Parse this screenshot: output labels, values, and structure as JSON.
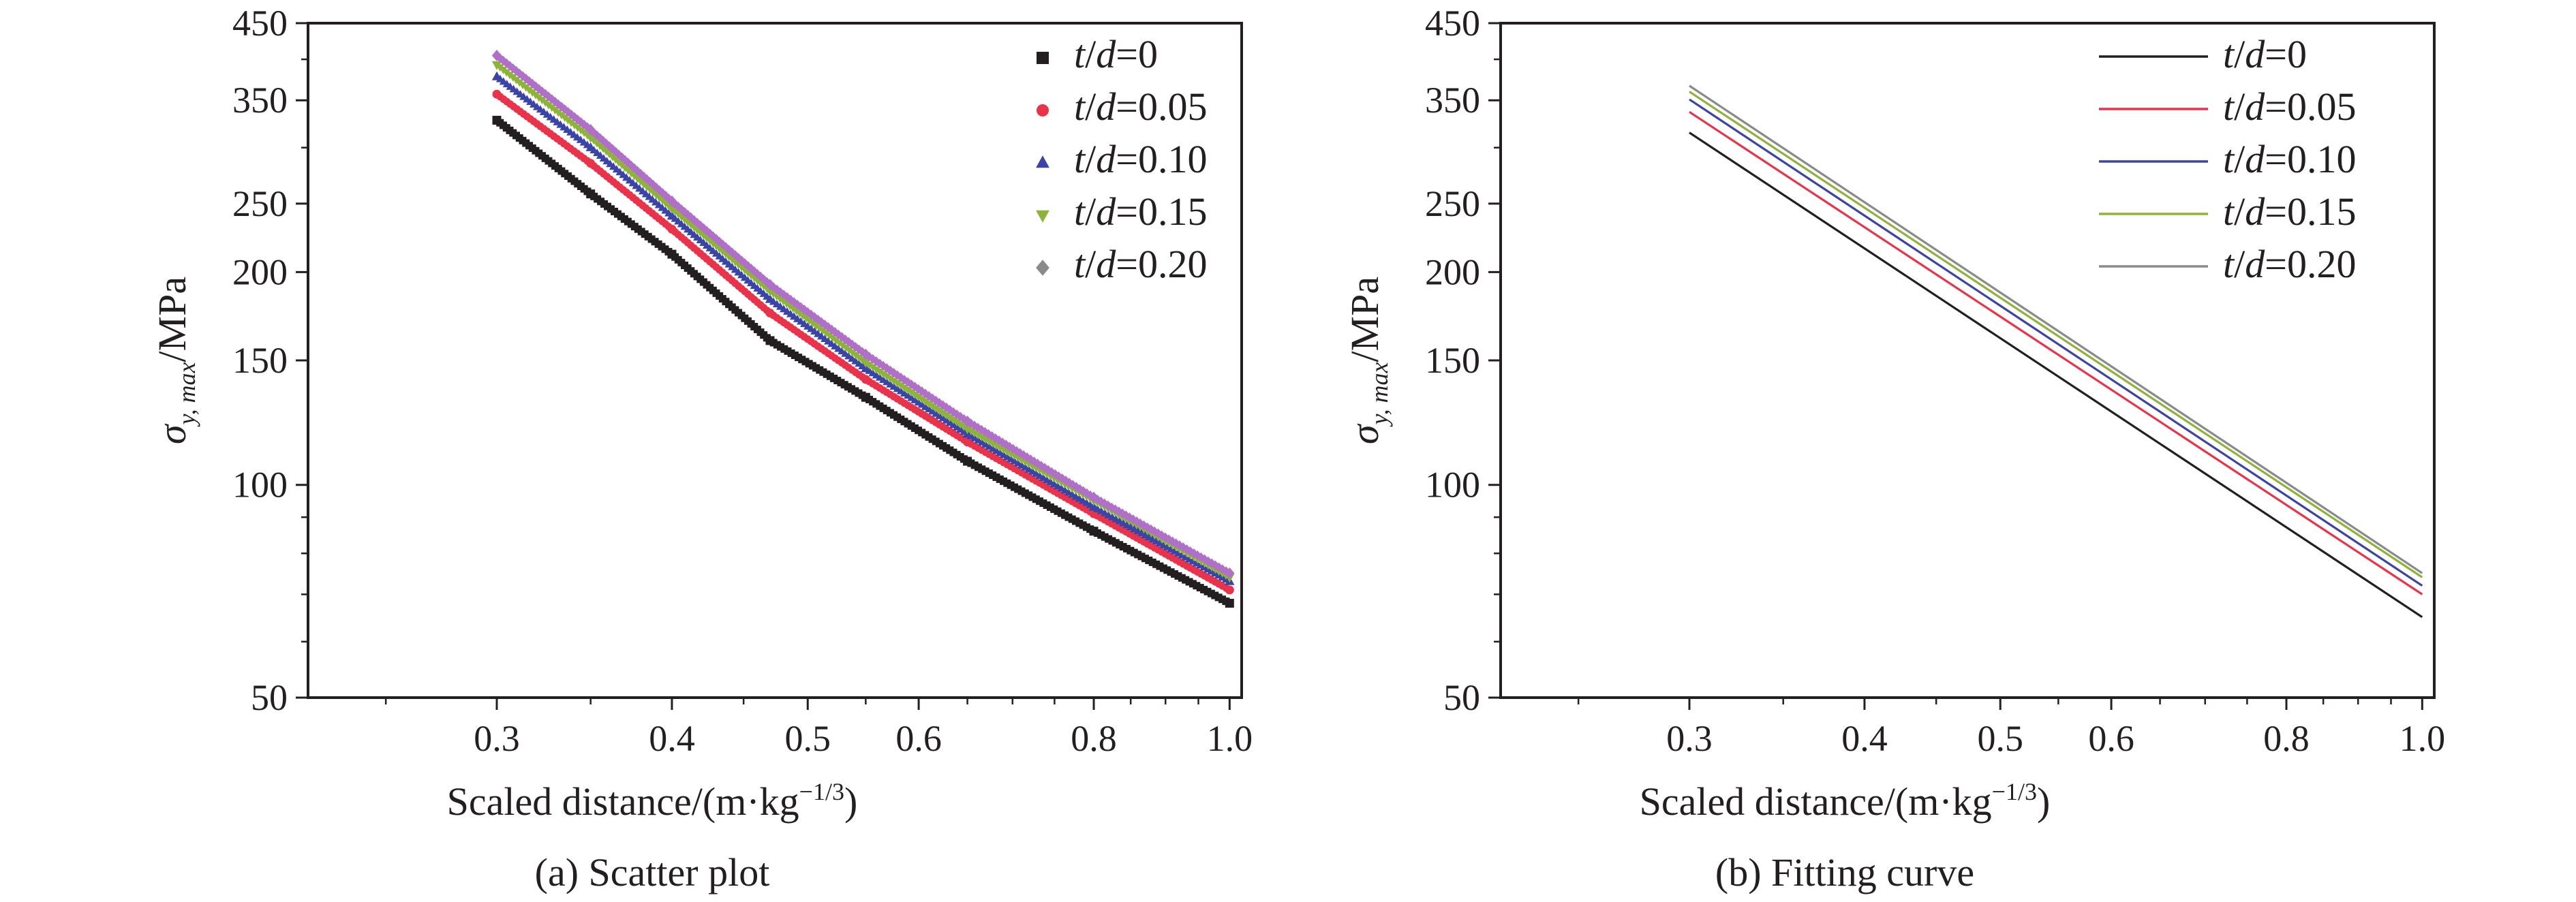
{
  "figure": {
    "panels": [
      {
        "caption": "(a) Scatter plot",
        "xlabel_main": "Scaled distance/(m·kg",
        "xlabel_sup": "−1/3",
        "xlabel_close": ")",
        "ylabel_sigma": "σ",
        "ylabel_sub": "y, max",
        "ylabel_unit": "/MPa"
      },
      {
        "caption": "(b) Fitting curve",
        "xlabel_main": "Scaled distance/(m·kg",
        "xlabel_sup": "−1/3",
        "xlabel_close": ")",
        "ylabel_sigma": "σ",
        "ylabel_sub": "y, max",
        "ylabel_unit": "/MPa"
      }
    ]
  },
  "colors": {
    "td_0": "#231f20",
    "td_0_05": "#e8334a",
    "td_0_10": "#3a44a6",
    "td_0_15": "#8db33a",
    "td_0_20": "#8a8a8a",
    "td_0_20_scatter": "#b070c8"
  },
  "chart_data": [
    {
      "type": "scatter",
      "title": "(a) Scatter plot",
      "x_scale": "log",
      "y_scale": "log",
      "xlim": [
        0.22,
        1.02
      ],
      "ylim": [
        50,
        450
      ],
      "x_ticks": [
        0.3,
        0.4,
        0.5,
        0.6,
        0.8,
        1.0
      ],
      "x_tick_labels": [
        "0.3",
        "0.4",
        "0.5",
        "0.6",
        "0.8",
        "1.0"
      ],
      "y_ticks": [
        50,
        100,
        150,
        200,
        250,
        350,
        450
      ],
      "y_tick_labels": [
        "50",
        "100",
        "150",
        "200",
        "250",
        "350",
        "450"
      ],
      "legend_position": "top-right",
      "grid": false,
      "series": [
        {
          "name": "t/d=0",
          "name_parts": [
            "t",
            "/",
            "d",
            "=0"
          ],
          "marker": "square",
          "color": "#231f20",
          "x": [
            0.3,
            0.35,
            0.4,
            0.47,
            0.55,
            0.65,
            0.8,
            1.0
          ],
          "y": [
            328,
            258,
            212,
            160,
            133,
            108,
            86,
            68
          ]
        },
        {
          "name": "t/d=0.05",
          "name_parts": [
            "t",
            "/",
            "d",
            "=0.05"
          ],
          "marker": "circle",
          "color": "#e8334a",
          "x": [
            0.3,
            0.35,
            0.4,
            0.47,
            0.55,
            0.65,
            0.8,
            1.0
          ],
          "y": [
            357,
            285,
            230,
            175,
            141,
            115,
            91,
            71
          ]
        },
        {
          "name": "t/d=0.10",
          "name_parts": [
            "t",
            "/",
            "d",
            "=0.10"
          ],
          "marker": "triangle",
          "color": "#3a44a6",
          "x": [
            0.3,
            0.35,
            0.4,
            0.47,
            0.55,
            0.65,
            0.8,
            1.0
          ],
          "y": [
            378,
            300,
            240,
            183,
            146,
            118,
            93,
            73
          ]
        },
        {
          "name": "t/d=0.15",
          "name_parts": [
            "t",
            "/",
            "d",
            "=0.15"
          ],
          "marker": "triangle-down",
          "color": "#8db33a",
          "x": [
            0.3,
            0.35,
            0.4,
            0.47,
            0.55,
            0.65,
            0.8,
            1.0
          ],
          "y": [
            393,
            310,
            246,
            188,
            149,
            120,
            95,
            74
          ]
        },
        {
          "name": "t/d=0.20",
          "name_parts": [
            "t",
            "/",
            "d",
            "=0.20"
          ],
          "marker": "diamond",
          "color": "#8a8a8a",
          "x": [
            0.3,
            0.35,
            0.4,
            0.47,
            0.55,
            0.65,
            0.8,
            1.0
          ],
          "y": [
            405,
            318,
            252,
            192,
            153,
            123,
            96,
            75
          ]
        }
      ]
    },
    {
      "type": "line",
      "title": "(b) Fitting curve",
      "x_scale": "log",
      "y_scale": "log",
      "xlim": [
        0.22,
        1.02
      ],
      "ylim": [
        50,
        450
      ],
      "x_ticks": [
        0.3,
        0.4,
        0.5,
        0.6,
        0.8,
        1.0
      ],
      "x_tick_labels": [
        "0.3",
        "0.4",
        "0.5",
        "0.6",
        "0.8",
        "1.0"
      ],
      "y_ticks": [
        50,
        100,
        150,
        200,
        250,
        350,
        450
      ],
      "y_tick_labels": [
        "50",
        "100",
        "150",
        "200",
        "250",
        "350",
        "450"
      ],
      "legend_position": "top-right",
      "grid": false,
      "series": [
        {
          "name": "t/d=0",
          "name_parts": [
            "t",
            "/",
            "d",
            "=0"
          ],
          "color": "#231f20",
          "x": [
            0.3,
            1.0
          ],
          "y": [
            315,
            65
          ]
        },
        {
          "name": "t/d=0.05",
          "name_parts": [
            "t",
            "/",
            "d",
            "=0.05"
          ],
          "color": "#e8334a",
          "x": [
            0.3,
            1.0
          ],
          "y": [
            337,
            70
          ]
        },
        {
          "name": "t/d=0.10",
          "name_parts": [
            "t",
            "/",
            "d",
            "=0.10"
          ],
          "color": "#3a44a6",
          "x": [
            0.3,
            1.0
          ],
          "y": [
            351,
            72
          ]
        },
        {
          "name": "t/d=0.15",
          "name_parts": [
            "t",
            "/",
            "d",
            "=0.15"
          ],
          "color": "#8db33a",
          "x": [
            0.3,
            1.0
          ],
          "y": [
            360,
            74
          ]
        },
        {
          "name": "t/d=0.20",
          "name_parts": [
            "t",
            "/",
            "d",
            "=0.20"
          ],
          "color": "#8a8a8a",
          "x": [
            0.3,
            1.0
          ],
          "y": [
            367,
            75
          ]
        }
      ]
    }
  ]
}
